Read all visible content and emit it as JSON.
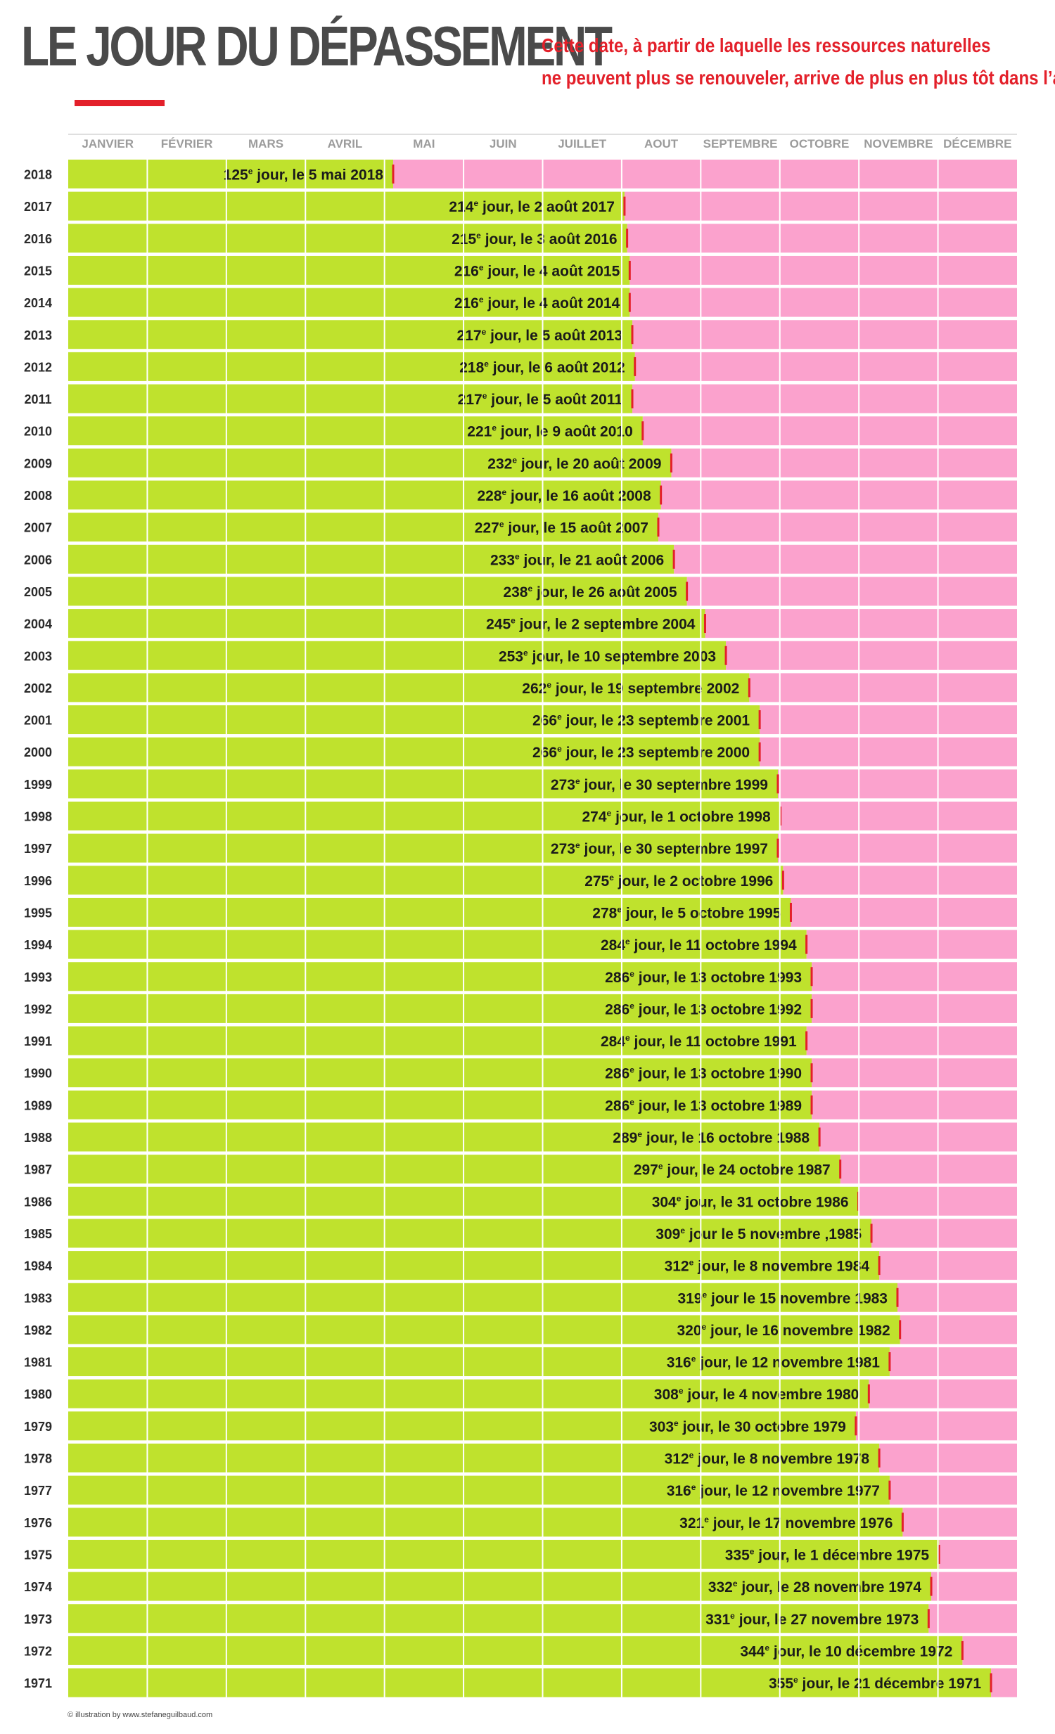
{
  "header": {
    "title": "LE JOUR DU DÉPASSEMENT",
    "subtitle_line1": "Cette date, à partir de laquelle les ressources naturelles",
    "subtitle_line2": "ne peuvent plus se renouveler, arrive de plus en plus tôt dans l’année."
  },
  "footer": {
    "credit": "© illustration by www.stefaneguilbaud.com"
  },
  "colors": {
    "green": "#bfe22d",
    "pink": "#fba2cd",
    "red_marker": "#e3202a",
    "grid": "#ffffff",
    "title_underline": "#e3202a"
  },
  "chart_data": {
    "type": "bar",
    "orientation": "horizontal",
    "xlim": [
      0,
      365
    ],
    "months": [
      "JANVIER",
      "FÉVRIER",
      "MARS",
      "AVRIL",
      "MAI",
      "JUIN",
      "JUILLET",
      "AOUT",
      "SEPTEMBRE",
      "OCTOBRE",
      "NOVEMBRE",
      "DÉCEMBRE"
    ],
    "rows": [
      {
        "year": "2018",
        "day": 125,
        "ord": "125",
        "sup": "e",
        "rest": " jour, le 5 mai 2018"
      },
      {
        "year": "2017",
        "day": 214,
        "ord": "214",
        "sup": "e",
        "rest": " jour, le 2 août 2017"
      },
      {
        "year": "2016",
        "day": 215,
        "ord": "215",
        "sup": "e",
        "rest": " jour, le 3 août 2016"
      },
      {
        "year": "2015",
        "day": 216,
        "ord": "216",
        "sup": "e",
        "rest": " jour, le 4 août 2015"
      },
      {
        "year": "2014",
        "day": 216,
        "ord": "216",
        "sup": "e",
        "rest": " jour, le 4 août 2014"
      },
      {
        "year": "2013",
        "day": 217,
        "ord": "217",
        "sup": "e",
        "rest": " jour, le 5 août 2013"
      },
      {
        "year": "2012",
        "day": 218,
        "ord": "218",
        "sup": "e",
        "rest": " jour, le 6 août 2012"
      },
      {
        "year": "2011",
        "day": 217,
        "ord": "217",
        "sup": "e",
        "rest": " jour, le 5 août 2011"
      },
      {
        "year": "2010",
        "day": 221,
        "ord": "221",
        "sup": "e",
        "rest": " jour, le 9 août 2010"
      },
      {
        "year": "2009",
        "day": 232,
        "ord": "232",
        "sup": "e",
        "rest": " jour, le 20 août 2009"
      },
      {
        "year": "2008",
        "day": 228,
        "ord": "228",
        "sup": "e",
        "rest": " jour, le 16 août 2008"
      },
      {
        "year": "2007",
        "day": 227,
        "ord": "227",
        "sup": "e",
        "rest": " jour, le 15 août 2007"
      },
      {
        "year": "2006",
        "day": 233,
        "ord": "233",
        "sup": "e",
        "rest": " jour, le 21 août 2006"
      },
      {
        "year": "2005",
        "day": 238,
        "ord": "238",
        "sup": "e",
        "rest": " jour, le 26 août 2005"
      },
      {
        "year": "2004",
        "day": 245,
        "ord": "245",
        "sup": "e",
        "rest": " jour, le 2 septembre 2004"
      },
      {
        "year": "2003",
        "day": 253,
        "ord": "253",
        "sup": "e",
        "rest": " jour, le 10 septembre 2003"
      },
      {
        "year": "2002",
        "day": 262,
        "ord": "262",
        "sup": "e",
        "rest": " jour, le 19 septembre 2002"
      },
      {
        "year": "2001",
        "day": 266,
        "ord": "266",
        "sup": "e",
        "rest": " jour, le 23 septembre 2001"
      },
      {
        "year": "2000",
        "day": 266,
        "ord": "266",
        "sup": "e",
        "rest": " jour, le 23 septembre 2000"
      },
      {
        "year": "1999",
        "day": 273,
        "ord": "273",
        "sup": "e",
        "rest": " jour, le 30 septembre 1999"
      },
      {
        "year": "1998",
        "day": 274,
        "ord": "274",
        "sup": "e",
        "rest": " jour, le 1 octobre 1998"
      },
      {
        "year": "1997",
        "day": 273,
        "ord": "273",
        "sup": "e",
        "rest": " jour, le 30 septembre 1997"
      },
      {
        "year": "1996",
        "day": 275,
        "ord": "275",
        "sup": "e",
        "rest": " jour, le 2 octobre 1996"
      },
      {
        "year": "1995",
        "day": 278,
        "ord": "278",
        "sup": "e",
        "rest": " jour, le 5 octobre 1995"
      },
      {
        "year": "1994",
        "day": 284,
        "ord": "284",
        "sup": "e",
        "rest": " jour, le 11 octobre 1994"
      },
      {
        "year": "1993",
        "day": 286,
        "ord": "286",
        "sup": "e",
        "rest": " jour, le 13 octobre 1993"
      },
      {
        "year": "1992",
        "day": 286,
        "ord": "286",
        "sup": "e",
        "rest": " jour, le 13 octobre 1992"
      },
      {
        "year": "1991",
        "day": 284,
        "ord": "284",
        "sup": "e",
        "rest": " jour, le 11 octobre 1991"
      },
      {
        "year": "1990",
        "day": 286,
        "ord": "286",
        "sup": "e",
        "rest": " jour, le 13 octobre 1990"
      },
      {
        "year": "1989",
        "day": 286,
        "ord": "286",
        "sup": "e",
        "rest": " jour, le 13 octobre 1989"
      },
      {
        "year": "1988",
        "day": 289,
        "ord": "289",
        "sup": "e",
        "rest": " jour, le 16 octobre 1988"
      },
      {
        "year": "1987",
        "day": 297,
        "ord": "297",
        "sup": "e",
        "rest": " jour, le 24 octobre 1987"
      },
      {
        "year": "1986",
        "day": 304,
        "ord": "304",
        "sup": "e",
        "rest": " jour, le 31 octobre 1986"
      },
      {
        "year": "1985",
        "day": 309,
        "ord": "309",
        "sup": "e",
        "rest": " jour  le 5 novembre ,1985"
      },
      {
        "year": "1984",
        "day": 312,
        "ord": "312",
        "sup": "e",
        "rest": " jour, le 8 novembre 1984"
      },
      {
        "year": "1983",
        "day": 319,
        "ord": "319",
        "sup": "e",
        "rest": " jour  le 15 novembre 1983"
      },
      {
        "year": "1982",
        "day": 320,
        "ord": "320",
        "sup": "e",
        "rest": " jour, le 16 novembre 1982"
      },
      {
        "year": "1981",
        "day": 316,
        "ord": "316",
        "sup": "e",
        "rest": " jour, le 12 novembre 1981"
      },
      {
        "year": "1980",
        "day": 308,
        "ord": "308",
        "sup": "e",
        "rest": " jour, le 4 novembre 1980"
      },
      {
        "year": "1979",
        "day": 303,
        "ord": "303",
        "sup": "e",
        "rest": " jour, le 30 octobre 1979"
      },
      {
        "year": "1978",
        "day": 312,
        "ord": "312",
        "sup": "e",
        "rest": " jour, le 8 novembre 1978"
      },
      {
        "year": "1977",
        "day": 316,
        "ord": "316",
        "sup": "e",
        "rest": " jour, le 12 novembre 1977"
      },
      {
        "year": "1976",
        "day": 321,
        "ord": "321",
        "sup": "e",
        "rest": " jour, le 17 novembre 1976"
      },
      {
        "year": "1975",
        "day": 335,
        "ord": "335",
        "sup": "e",
        "rest": " jour, le 1 décembre 1975"
      },
      {
        "year": "1974",
        "day": 332,
        "ord": "332",
        "sup": "e",
        "rest": " jour, le 28 novembre 1974"
      },
      {
        "year": "1973",
        "day": 331,
        "ord": "331",
        "sup": "e",
        "rest": " jour, le 27 novembre 1973"
      },
      {
        "year": "1972",
        "day": 344,
        "ord": "344",
        "sup": "e",
        "rest": " jour, le 10 décembre 1972"
      },
      {
        "year": "1971",
        "day": 355,
        "ord": "355",
        "sup": "e",
        "rest": " jour, le 21 décembre 1971"
      }
    ]
  }
}
